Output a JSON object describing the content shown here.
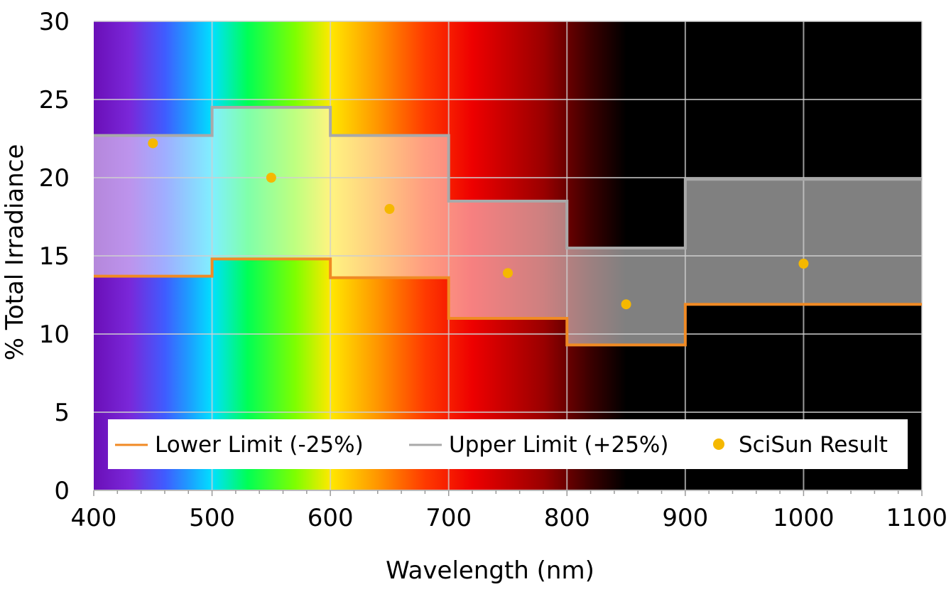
{
  "chart_data": {
    "type": "line",
    "title": "",
    "xlabel": "Wavelength (nm)",
    "ylabel": "% Total Irradiance",
    "xlim": [
      400,
      1100
    ],
    "ylim": [
      0,
      30
    ],
    "x_ticks": [
      "400",
      "500",
      "600",
      "700",
      "800",
      "900",
      "1000",
      "1100"
    ],
    "y_ticks": [
      "0",
      "5",
      "10",
      "15",
      "20",
      "25",
      "30"
    ],
    "grid": true,
    "legend_position": "bottom",
    "background": "visible-spectrum gradient (violet to red, black beyond ~820 nm)",
    "bands": [
      {
        "from": 400,
        "to": 500
      },
      {
        "from": 500,
        "to": 600
      },
      {
        "from": 600,
        "to": 700
      },
      {
        "from": 700,
        "to": 800
      },
      {
        "from": 800,
        "to": 900
      },
      {
        "from": 900,
        "to": 1100
      }
    ],
    "series": [
      {
        "name": "Lower Limit (-25%)",
        "style": "step",
        "color": "#f08a24",
        "values": [
          13.7,
          14.8,
          13.6,
          11.0,
          9.3,
          11.9
        ]
      },
      {
        "name": "Upper Limit (+25%)",
        "style": "step",
        "color": "#a9a9a9",
        "values": [
          22.7,
          24.5,
          22.7,
          18.5,
          15.5,
          19.9
        ]
      },
      {
        "name": "SciSun Result",
        "style": "scatter",
        "color": "#f5b800",
        "x": [
          450,
          550,
          650,
          750,
          850,
          1000
        ],
        "values": [
          22.2,
          20.0,
          18.0,
          13.9,
          11.9,
          14.5
        ]
      }
    ]
  }
}
